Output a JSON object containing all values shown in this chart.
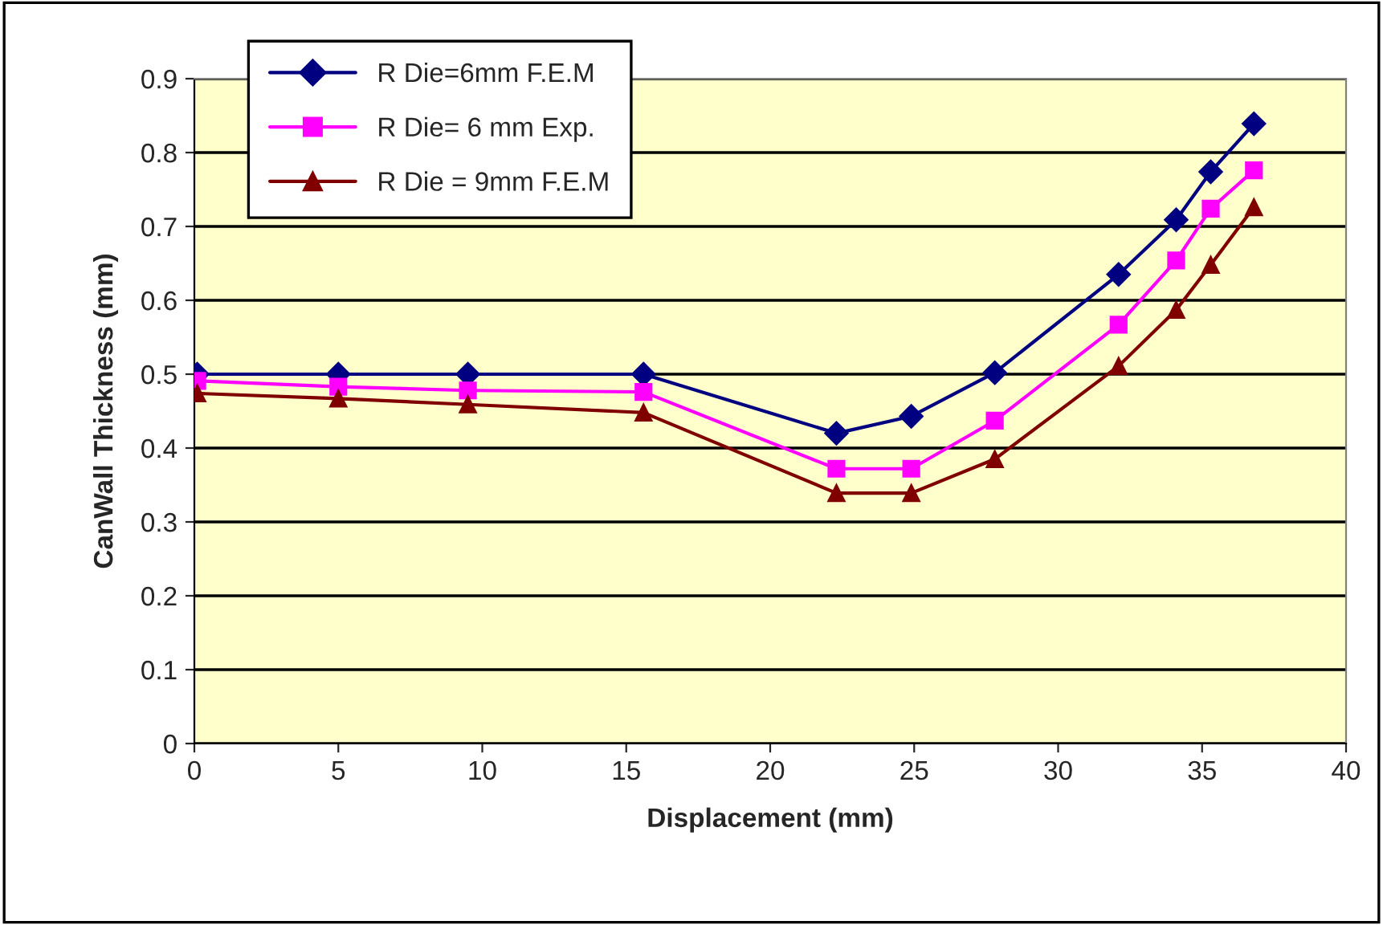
{
  "chart_data": {
    "type": "line",
    "xlabel": "Displacement (mm)",
    "ylabel": "CanWall Thickness (mm)",
    "xlim": [
      0,
      40
    ],
    "xticks": [
      0,
      5,
      10,
      15,
      20,
      25,
      30,
      35,
      40
    ],
    "ylim": [
      0,
      0.9
    ],
    "yticks": [
      0,
      0.1,
      0.2,
      0.3,
      0.4,
      0.5,
      0.6,
      0.7,
      0.8,
      0.9
    ],
    "grid": "y",
    "legend": "top left",
    "series": [
      {
        "name": "R Die=6mm F.E.M",
        "color": "#000080",
        "marker": "diamond",
        "x": [
          0.1,
          5,
          9.5,
          15.6,
          22.3,
          24.9,
          27.8,
          32.1,
          34.1,
          35.3,
          36.8
        ],
        "values": [
          0.5,
          0.5,
          0.5,
          0.5,
          0.42,
          0.443,
          0.502,
          0.635,
          0.709,
          0.774,
          0.839
        ]
      },
      {
        "name": "R Die= 6 mm Exp.",
        "color": "#ff00ff",
        "marker": "square",
        "x": [
          0.1,
          5,
          9.5,
          15.6,
          22.3,
          24.9,
          27.8,
          32.1,
          34.1,
          35.3,
          36.8
        ],
        "values": [
          0.491,
          0.483,
          0.478,
          0.476,
          0.372,
          0.372,
          0.437,
          0.567,
          0.654,
          0.724,
          0.776
        ]
      },
      {
        "name": "R Die = 9mm F.E.M",
        "color": "#800000",
        "marker": "triangle",
        "x": [
          0.1,
          5,
          9.5,
          15.6,
          22.3,
          24.9,
          27.8,
          32.1,
          34.1,
          35.3,
          36.8
        ],
        "values": [
          0.474,
          0.467,
          0.459,
          0.448,
          0.339,
          0.339,
          0.385,
          0.511,
          0.587,
          0.648,
          0.726
        ]
      }
    ]
  }
}
